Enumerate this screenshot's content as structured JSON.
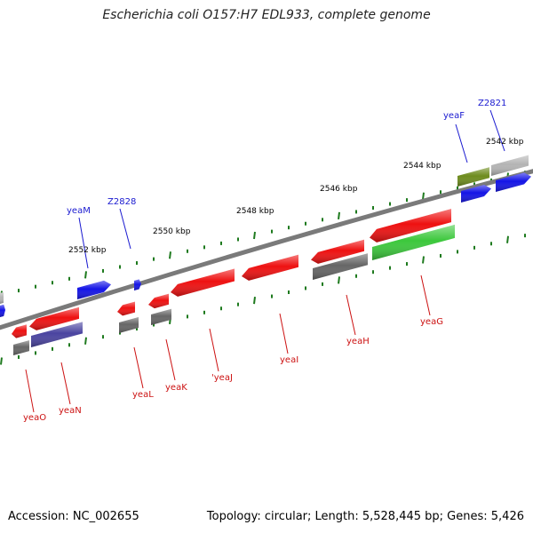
{
  "title": "Escherichia coli O157:H7 EDL933, complete genome",
  "footer": {
    "accession": "Accession: NC_002655",
    "summary": "Topology: circular; Length: 5,528,445 bp; Genes: 5,426"
  },
  "colors": {
    "background": "#ffffff",
    "backbone": "#808080",
    "tick": "#1e7a1e",
    "tick_label": "#000000",
    "label_forward": "#1a1ad0",
    "label_reverse": "#cc1111",
    "gene_red": "#ee1111",
    "gene_blue": "#1414e6",
    "gene_gray": "#666666",
    "gene_light_gray": "#b4b4b4",
    "gene_olive": "#6e8c1e",
    "gene_green": "#3cc83c",
    "gene_navy": "#4a44a0"
  },
  "tick_labels": [
    "2542 kbp",
    "2544 kbp",
    "2546 kbp",
    "2548 kbp",
    "2550 kbp",
    "2552 kbp"
  ],
  "gene_labels": [
    {
      "text": "yeaF",
      "strand": "forward"
    },
    {
      "text": "Z2821",
      "strand": "forward"
    },
    {
      "text": "Z2828",
      "strand": "forward"
    },
    {
      "text": "yeaM",
      "strand": "forward"
    },
    {
      "text": "yeaO",
      "strand": "reverse"
    },
    {
      "text": "yeaN",
      "strand": "reverse"
    },
    {
      "text": "yeaL",
      "strand": "reverse"
    },
    {
      "text": "yeaK",
      "strand": "reverse"
    },
    {
      "text": "'yeaJ",
      "strand": "reverse"
    },
    {
      "text": "yeaI",
      "strand": "reverse"
    },
    {
      "text": "yeaH",
      "strand": "reverse"
    },
    {
      "text": "yeaG",
      "strand": "reverse"
    }
  ]
}
